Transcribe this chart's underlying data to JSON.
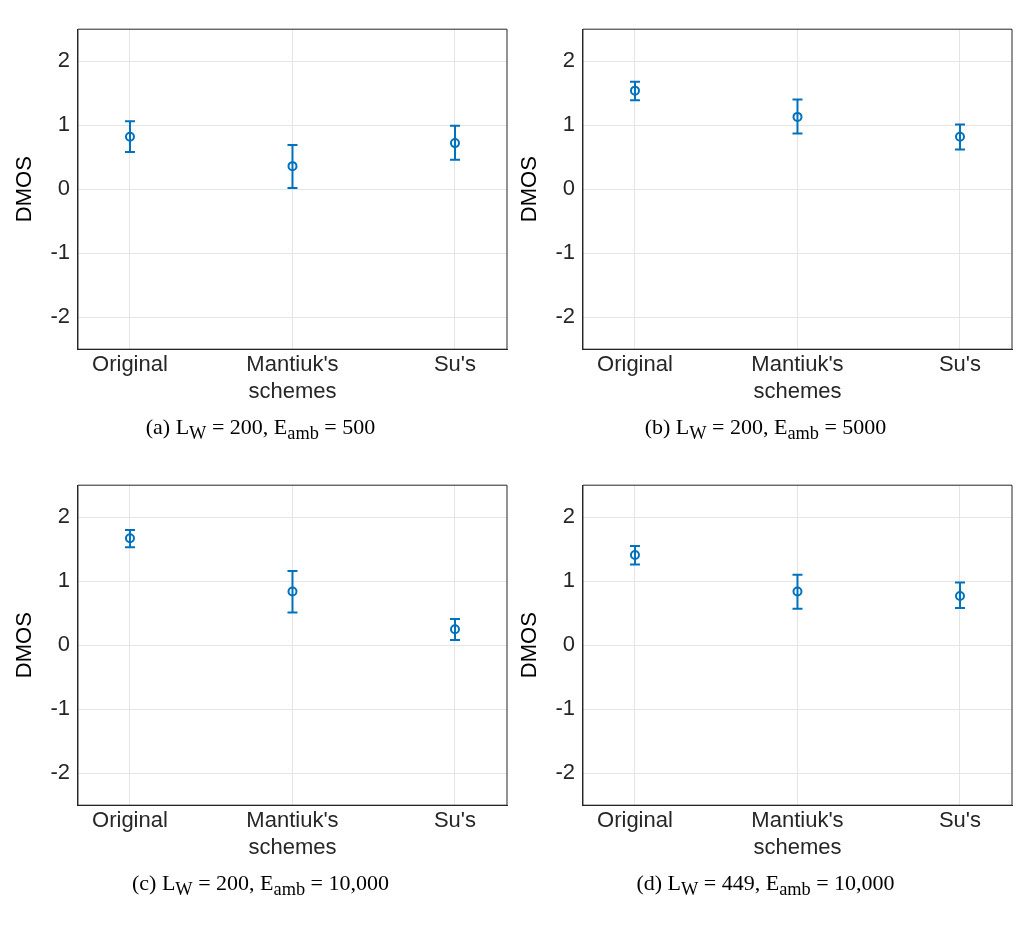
{
  "chart_data": [
    {
      "type": "scatter",
      "title": "(a) L$_{W}$ = 200, E$_{amb}$ = 500",
      "categories": [
        "Original",
        "Mantiuk's schemes",
        "Su's"
      ],
      "values": [
        0.82,
        0.36,
        0.72
      ],
      "errors": [
        [
          0.58,
          1.06
        ],
        [
          0.02,
          0.69
        ],
        [
          0.46,
          0.99
        ]
      ],
      "color": "#0072bd",
      "ylabel": "DMOS",
      "ylim": [
        -2.5,
        2.5
      ],
      "yticks": [
        -2,
        -1,
        0,
        1,
        2
      ],
      "grid": true,
      "marker": "circle"
    },
    {
      "type": "scatter",
      "title": "(b) L$_{W}$ = 200, E$_{amb}$ = 5000",
      "categories": [
        "Original",
        "Mantiuk's schemes",
        "Su's"
      ],
      "values": [
        1.54,
        1.13,
        0.82
      ],
      "errors": [
        [
          1.39,
          1.68
        ],
        [
          0.87,
          1.4
        ],
        [
          0.62,
          1.01
        ]
      ],
      "color": "#0072bd",
      "ylabel": "DMOS",
      "ylim": [
        -2.5,
        2.5
      ],
      "yticks": [
        -2,
        -1,
        0,
        1,
        2
      ],
      "grid": true,
      "marker": "circle"
    },
    {
      "type": "scatter",
      "title": "(c) L$_{W}$ = 200, E$_{amb}$ = 10,000",
      "categories": [
        "Original",
        "Mantiuk's schemes",
        "Su's"
      ],
      "values": [
        1.67,
        0.84,
        0.25
      ],
      "errors": [
        [
          1.53,
          1.8
        ],
        [
          0.51,
          1.16
        ],
        [
          0.08,
          0.41
        ]
      ],
      "color": "#0072bd",
      "ylabel": "DMOS",
      "ylim": [
        -2.5,
        2.5
      ],
      "yticks": [
        -2,
        -1,
        0,
        1,
        2
      ],
      "grid": true,
      "marker": "circle"
    },
    {
      "type": "scatter",
      "title": "(d) L$_{W}$ = 449, E$_{amb}$ = 10,000",
      "categories": [
        "Original",
        "Mantiuk's schemes",
        "Su's"
      ],
      "values": [
        1.41,
        0.84,
        0.77
      ],
      "errors": [
        [
          1.26,
          1.55
        ],
        [
          0.57,
          1.1
        ],
        [
          0.58,
          0.98
        ]
      ],
      "color": "#0072bd",
      "ylabel": "DMOS",
      "ylim": [
        -2.5,
        2.5
      ],
      "yticks": [
        -2,
        -1,
        0,
        1,
        2
      ],
      "grid": true,
      "marker": "circle"
    }
  ]
}
